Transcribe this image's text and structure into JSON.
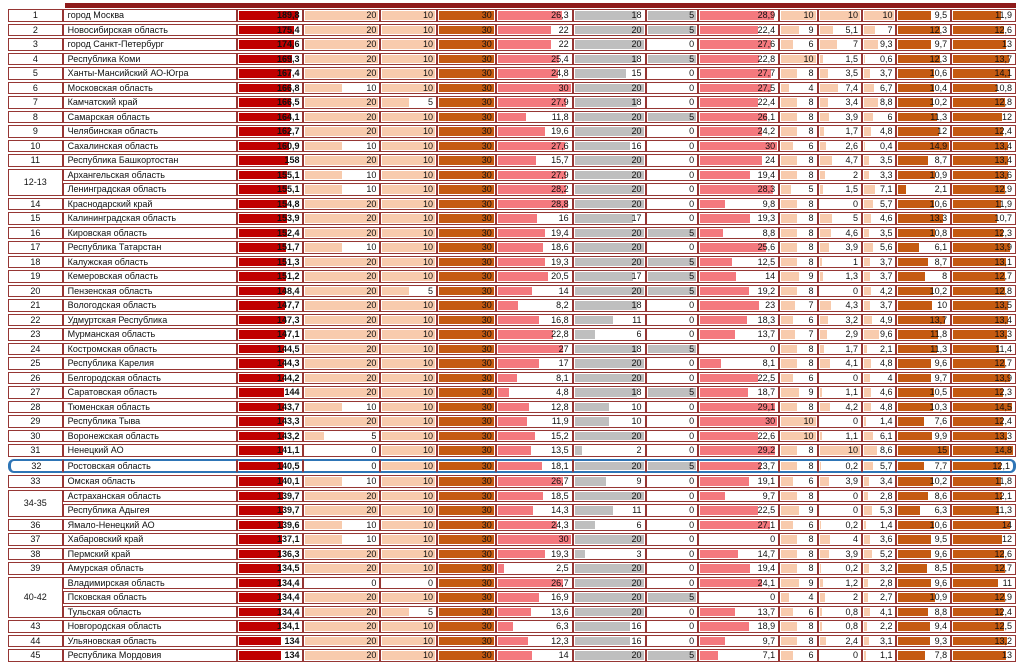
{
  "colors": {
    "crimson": "#C00000",
    "peach": "#F8CBAD",
    "brown": "#C55A11",
    "pink": "#F4797E",
    "gray": "#BFBFBF",
    "row_border": "#963634",
    "highlight": "#2E75B6",
    "header_bar": "#8E1B1B"
  },
  "table": {
    "value_columns": [
      {
        "id": "total",
        "max": 200,
        "color": "crimson",
        "overlap": true,
        "bold": true
      },
      {
        "id": "col-1",
        "max": 20,
        "color": "peach",
        "overlap": true
      },
      {
        "id": "col-2",
        "max": 10,
        "color": "peach",
        "overlap": true
      },
      {
        "id": "col-3",
        "max": 30,
        "color": "brown",
        "overlap": true
      },
      {
        "id": "col-4",
        "max": 30,
        "color": "pink",
        "overlap": true
      },
      {
        "id": "col-5",
        "max": 20,
        "color": "gray",
        "overlap": true
      },
      {
        "id": "col-6",
        "max": 5,
        "color": "gray",
        "overlap": false
      },
      {
        "id": "col-7",
        "max": 30,
        "color": "pink",
        "overlap": true
      },
      {
        "id": "col-8",
        "max": 10,
        "color": "peach",
        "overlap": false
      },
      {
        "id": "col-9",
        "max": 10,
        "color": "peach",
        "overlap": false
      },
      {
        "id": "col-10",
        "max": 10,
        "color": "peach",
        "overlap": false
      },
      {
        "id": "col-11",
        "max": 15,
        "color": "brown",
        "overlap": true
      },
      {
        "id": "col-12",
        "max": 15,
        "color": "brown",
        "overlap": true
      }
    ],
    "highlighted_rank": "32",
    "rows": [
      {
        "rank": "1",
        "span": 1,
        "region": "город Москва",
        "values": [
          "189,8",
          "20",
          "10",
          "30",
          "26,3",
          "18",
          "5",
          "28,9",
          "10",
          "10",
          "10",
          "9,5",
          "11,9"
        ]
      },
      {
        "rank": "2",
        "span": 1,
        "region": "Новосибирская область",
        "values": [
          "175,4",
          "20",
          "10",
          "30",
          "22",
          "20",
          "5",
          "22,4",
          "9",
          "5,1",
          "7",
          "12,3",
          "12,6"
        ]
      },
      {
        "rank": "3",
        "span": 1,
        "region": "город Санкт-Петербург",
        "values": [
          "174,6",
          "20",
          "10",
          "30",
          "22",
          "20",
          "0",
          "27,6",
          "6",
          "7",
          "9,3",
          "9,7",
          "13"
        ]
      },
      {
        "rank": "4",
        "span": 1,
        "region": "Республика Коми",
        "values": [
          "169,3",
          "20",
          "10",
          "30",
          "25,4",
          "18",
          "5",
          "22,8",
          "10",
          "1,5",
          "0,6",
          "12,3",
          "13,7"
        ]
      },
      {
        "rank": "5",
        "span": 1,
        "region": "Ханты-Мансийский АО-Югра",
        "values": [
          "167,4",
          "20",
          "10",
          "30",
          "24,8",
          "15",
          "0",
          "27,7",
          "8",
          "3,5",
          "3,7",
          "10,6",
          "14,1"
        ]
      },
      {
        "rank": "6",
        "span": 1,
        "region": "Московская область",
        "values": [
          "166,8",
          "10",
          "10",
          "30",
          "30",
          "20",
          "0",
          "27,5",
          "4",
          "7,4",
          "6,7",
          "10,4",
          "10,8"
        ]
      },
      {
        "rank": "7",
        "span": 1,
        "region": "Камчатский край",
        "values": [
          "166,5",
          "20",
          "5",
          "30",
          "27,9",
          "18",
          "0",
          "22,4",
          "8",
          "3,4",
          "8,8",
          "10,2",
          "12,8"
        ]
      },
      {
        "rank": "8",
        "span": 1,
        "region": "Самарская область",
        "values": [
          "164,1",
          "20",
          "10",
          "30",
          "11,8",
          "20",
          "5",
          "26,1",
          "8",
          "3,9",
          "6",
          "11,3",
          "12"
        ]
      },
      {
        "rank": "9",
        "span": 1,
        "region": "Челябинская область",
        "values": [
          "162,7",
          "20",
          "10",
          "30",
          "19,6",
          "20",
          "0",
          "24,2",
          "8",
          "1,7",
          "4,8",
          "12",
          "12,4"
        ]
      },
      {
        "rank": "10",
        "span": 1,
        "region": "Сахалинская область",
        "values": [
          "160,9",
          "10",
          "10",
          "30",
          "27,6",
          "16",
          "0",
          "30",
          "6",
          "2,6",
          "0,4",
          "14,9",
          "13,4"
        ]
      },
      {
        "rank": "11",
        "span": 1,
        "region": "Республика Башкортостан",
        "values": [
          "158",
          "20",
          "10",
          "30",
          "15,7",
          "20",
          "0",
          "24",
          "8",
          "4,7",
          "3,5",
          "8,7",
          "13,4"
        ]
      },
      {
        "rank": "12-13",
        "span": 2,
        "region": "Архангельская область",
        "values": [
          "155,1",
          "10",
          "10",
          "30",
          "27,9",
          "20",
          "0",
          "19,4",
          "8",
          "2",
          "3,3",
          "10,9",
          "13,6"
        ]
      },
      {
        "rank": null,
        "span": 1,
        "region": "Ленинградская область",
        "values": [
          "155,1",
          "10",
          "10",
          "30",
          "28,2",
          "20",
          "0",
          "28,3",
          "5",
          "1,5",
          "7,1",
          "2,1",
          "12,9"
        ]
      },
      {
        "rank": "14",
        "span": 1,
        "region": "Краснодарский край",
        "values": [
          "154,8",
          "20",
          "10",
          "30",
          "28,8",
          "20",
          "0",
          "9,8",
          "8",
          "0",
          "5,7",
          "10,6",
          "11,9"
        ]
      },
      {
        "rank": "15",
        "span": 1,
        "region": "Калининградская область",
        "values": [
          "153,9",
          "20",
          "10",
          "30",
          "16",
          "17",
          "0",
          "19,3",
          "8",
          "5",
          "4,6",
          "13,3",
          "10,7"
        ]
      },
      {
        "rank": "16",
        "span": 1,
        "region": "Кировская область",
        "values": [
          "152,4",
          "20",
          "10",
          "30",
          "19,4",
          "20",
          "5",
          "8,8",
          "8",
          "4,6",
          "3,5",
          "10,8",
          "12,3"
        ]
      },
      {
        "rank": "17",
        "span": 1,
        "region": "Республика Татарстан",
        "values": [
          "151,7",
          "10",
          "10",
          "30",
          "18,6",
          "20",
          "0",
          "25,6",
          "8",
          "3,9",
          "5,6",
          "6,1",
          "13,9"
        ]
      },
      {
        "rank": "18",
        "span": 1,
        "region": "Калужская область",
        "values": [
          "151,3",
          "20",
          "10",
          "30",
          "19,3",
          "20",
          "5",
          "12,5",
          "8",
          "1",
          "3,7",
          "8,7",
          "13,1"
        ]
      },
      {
        "rank": "19",
        "span": 1,
        "region": "Кемеровская область",
        "values": [
          "151,2",
          "20",
          "10",
          "30",
          "20,5",
          "17",
          "5",
          "14",
          "9",
          "1,3",
          "3,7",
          "8",
          "12,7"
        ]
      },
      {
        "rank": "20",
        "span": 1,
        "region": "Пензенская область",
        "values": [
          "148,4",
          "20",
          "5",
          "30",
          "14",
          "20",
          "5",
          "19,2",
          "8",
          "0",
          "4,2",
          "10,2",
          "12,8"
        ]
      },
      {
        "rank": "21",
        "span": 1,
        "region": "Вологодская область",
        "values": [
          "147,7",
          "20",
          "10",
          "30",
          "8,2",
          "18",
          "0",
          "23",
          "7",
          "4,3",
          "3,7",
          "10",
          "13,5"
        ]
      },
      {
        "rank": "22",
        "span": 1,
        "region": "Удмуртская Республика",
        "values": [
          "147,3",
          "20",
          "10",
          "30",
          "16,8",
          "11",
          "0",
          "18,3",
          "6",
          "3,2",
          "4,9",
          "13,7",
          "13,4"
        ]
      },
      {
        "rank": "23",
        "span": 1,
        "region": "Мурманская область",
        "values": [
          "147,1",
          "20",
          "10",
          "30",
          "22,8",
          "6",
          "0",
          "13,7",
          "7",
          "2,9",
          "9,6",
          "11,8",
          "13,3"
        ]
      },
      {
        "rank": "24",
        "span": 1,
        "region": "Костромская область",
        "values": [
          "144,5",
          "20",
          "10",
          "30",
          "27",
          "18",
          "5",
          "0",
          "8",
          "1,7",
          "2,1",
          "11,3",
          "11,4"
        ]
      },
      {
        "rank": "25",
        "span": 1,
        "region": "Республика Карелия",
        "values": [
          "144,3",
          "20",
          "10",
          "30",
          "17",
          "20",
          "0",
          "8,1",
          "8",
          "4,1",
          "4,8",
          "9,6",
          "12,7"
        ]
      },
      {
        "rank": "26",
        "span": 1,
        "region": "Белгородская область",
        "values": [
          "144,2",
          "20",
          "10",
          "30",
          "8,1",
          "20",
          "0",
          "22,5",
          "6",
          "0",
          "4",
          "9,7",
          "13,9"
        ]
      },
      {
        "rank": "27",
        "span": 1,
        "region": "Саратовская область",
        "values": [
          "144",
          "20",
          "10",
          "30",
          "4,8",
          "18",
          "5",
          "18,7",
          "9",
          "1,1",
          "4,6",
          "10,5",
          "12,3"
        ]
      },
      {
        "rank": "28",
        "span": 1,
        "region": "Тюменская область",
        "values": [
          "143,7",
          "10",
          "10",
          "30",
          "12,8",
          "10",
          "0",
          "29,1",
          "8",
          "4,2",
          "4,8",
          "10,3",
          "14,5"
        ]
      },
      {
        "rank": "29",
        "span": 1,
        "region": "Республика Тыва",
        "values": [
          "143,3",
          "20",
          "10",
          "30",
          "11,9",
          "10",
          "0",
          "30",
          "10",
          "0",
          "1,4",
          "7,6",
          "12,4"
        ]
      },
      {
        "rank": "30",
        "span": 1,
        "region": "Воронежская область",
        "values": [
          "143,2",
          "5",
          "10",
          "30",
          "15,2",
          "20",
          "0",
          "22,6",
          "10",
          "1,1",
          "6,1",
          "9,9",
          "13,3"
        ]
      },
      {
        "rank": "31",
        "span": 1,
        "region": "Ненецкий АО",
        "values": [
          "141,1",
          "0",
          "10",
          "30",
          "13,5",
          "2",
          "0",
          "29,2",
          "8",
          "10",
          "8,6",
          "15",
          "14,8"
        ]
      },
      {
        "rank": "32",
        "span": 1,
        "region": "Ростовская область",
        "highlight": true,
        "values": [
          "140,5",
          "0",
          "10",
          "30",
          "18,1",
          "20",
          "5",
          "23,7",
          "8",
          "0,2",
          "5,7",
          "7,7",
          "12,1"
        ]
      },
      {
        "rank": "33",
        "span": 1,
        "region": "Омская область",
        "values": [
          "140,1",
          "10",
          "10",
          "30",
          "26,7",
          "9",
          "0",
          "19,1",
          "6",
          "3,9",
          "3,4",
          "10,2",
          "11,8"
        ]
      },
      {
        "rank": "34-35",
        "span": 2,
        "region": "Астраханская область",
        "values": [
          "139,7",
          "20",
          "10",
          "30",
          "18,5",
          "20",
          "0",
          "9,7",
          "8",
          "0",
          "2,8",
          "8,6",
          "12,1"
        ]
      },
      {
        "rank": null,
        "span": 1,
        "region": "Республика Адыгея",
        "values": [
          "139,7",
          "20",
          "10",
          "30",
          "14,3",
          "11",
          "0",
          "22,5",
          "9",
          "0",
          "5,3",
          "6,3",
          "11,3"
        ]
      },
      {
        "rank": "36",
        "span": 1,
        "region": "Ямало-Ненецкий АО",
        "values": [
          "139,6",
          "10",
          "10",
          "30",
          "24,3",
          "6",
          "0",
          "27,1",
          "6",
          "0,2",
          "1,4",
          "10,6",
          "14"
        ]
      },
      {
        "rank": "37",
        "span": 1,
        "region": "Хабаровский край",
        "values": [
          "137,1",
          "10",
          "10",
          "30",
          "30",
          "20",
          "0",
          "0",
          "8",
          "4",
          "3,6",
          "9,5",
          "12"
        ]
      },
      {
        "rank": "38",
        "span": 1,
        "region": "Пермский край",
        "values": [
          "136,3",
          "20",
          "10",
          "30",
          "19,3",
          "3",
          "0",
          "14,7",
          "8",
          "3,9",
          "5,2",
          "9,6",
          "12,6"
        ]
      },
      {
        "rank": "39",
        "span": 1,
        "region": "Амурская область",
        "values": [
          "134,5",
          "20",
          "10",
          "30",
          "2,5",
          "20",
          "0",
          "19,4",
          "8",
          "0,2",
          "3,2",
          "8,5",
          "12,7"
        ]
      },
      {
        "rank": "40-42",
        "span": 3,
        "region": "Владимирская область",
        "values": [
          "134,4",
          "0",
          "0",
          "30",
          "26,7",
          "20",
          "0",
          "24,1",
          "9",
          "1,2",
          "2,8",
          "9,6",
          "11"
        ]
      },
      {
        "rank": null,
        "span": 1,
        "region": "Псковская область",
        "values": [
          "134,4",
          "20",
          "10",
          "30",
          "16,9",
          "20",
          "5",
          "0",
          "4",
          "2",
          "2,7",
          "10,9",
          "12,9"
        ]
      },
      {
        "rank": null,
        "span": 1,
        "region": "Тульская область",
        "values": [
          "134,4",
          "20",
          "5",
          "30",
          "13,6",
          "20",
          "0",
          "13,7",
          "6",
          "0,8",
          "4,1",
          "8,8",
          "12,4"
        ]
      },
      {
        "rank": "43",
        "span": 1,
        "region": "Новгородская область",
        "values": [
          "134,1",
          "20",
          "10",
          "30",
          "6,3",
          "16",
          "0",
          "18,9",
          "8",
          "0,8",
          "2,2",
          "9,4",
          "12,5"
        ]
      },
      {
        "rank": "44",
        "span": 1,
        "region": "Ульяновская область",
        "values": [
          "134",
          "20",
          "10",
          "30",
          "12,3",
          "16",
          "0",
          "9,7",
          "8",
          "2,4",
          "3,1",
          "9,3",
          "13,2"
        ]
      },
      {
        "rank": "45",
        "span": 1,
        "region": "Республика Мордовия",
        "values": [
          "134",
          "20",
          "10",
          "30",
          "14",
          "20",
          "5",
          "7,1",
          "6",
          "0",
          "1,1",
          "7,8",
          "13"
        ]
      }
    ]
  }
}
